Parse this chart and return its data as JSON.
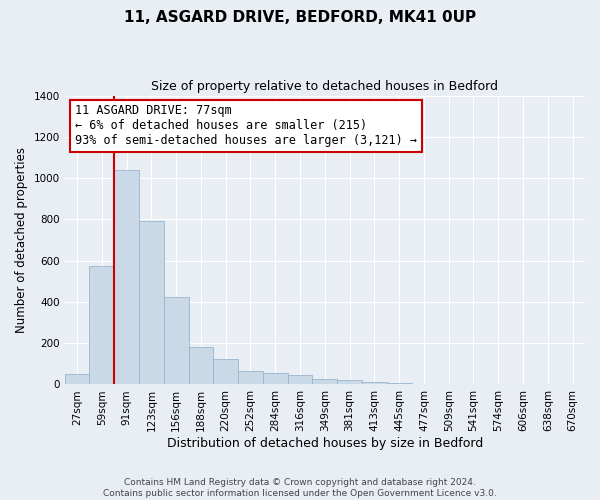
{
  "title": "11, ASGARD DRIVE, BEDFORD, MK41 0UP",
  "subtitle": "Size of property relative to detached houses in Bedford",
  "xlabel": "Distribution of detached houses by size in Bedford",
  "ylabel": "Number of detached properties",
  "bar_labels": [
    "27sqm",
    "59sqm",
    "91sqm",
    "123sqm",
    "156sqm",
    "188sqm",
    "220sqm",
    "252sqm",
    "284sqm",
    "316sqm",
    "349sqm",
    "381sqm",
    "413sqm",
    "445sqm",
    "477sqm",
    "509sqm",
    "541sqm",
    "574sqm",
    "606sqm",
    "638sqm",
    "670sqm"
  ],
  "bar_values": [
    50,
    575,
    1040,
    790,
    425,
    180,
    125,
    65,
    55,
    48,
    25,
    20,
    10,
    5,
    2,
    0,
    0,
    0,
    0,
    0,
    0
  ],
  "bar_color": "#c9d9e8",
  "bar_edge_color": "#9ab4cc",
  "vline_x": 1.5,
  "vline_color": "#cc0000",
  "annotation_line1": "11 ASGARD DRIVE: 77sqm",
  "annotation_line2": "← 6% of detached houses are smaller (215)",
  "annotation_line3": "93% of semi-detached houses are larger (3,121) →",
  "annotation_box_facecolor": "#ffffff",
  "annotation_box_edgecolor": "#cc0000",
  "ylim": [
    0,
    1400
  ],
  "yticks": [
    0,
    200,
    400,
    600,
    800,
    1000,
    1200,
    1400
  ],
  "footer_line1": "Contains HM Land Registry data © Crown copyright and database right 2024.",
  "footer_line2": "Contains public sector information licensed under the Open Government Licence v3.0.",
  "bg_color": "#e8eef4",
  "grid_color": "#ffffff",
  "title_fontsize": 11,
  "subtitle_fontsize": 9,
  "ylabel_fontsize": 8.5,
  "xlabel_fontsize": 9,
  "tick_fontsize": 7.5,
  "annotation_fontsize": 8.5,
  "footer_fontsize": 6.5
}
